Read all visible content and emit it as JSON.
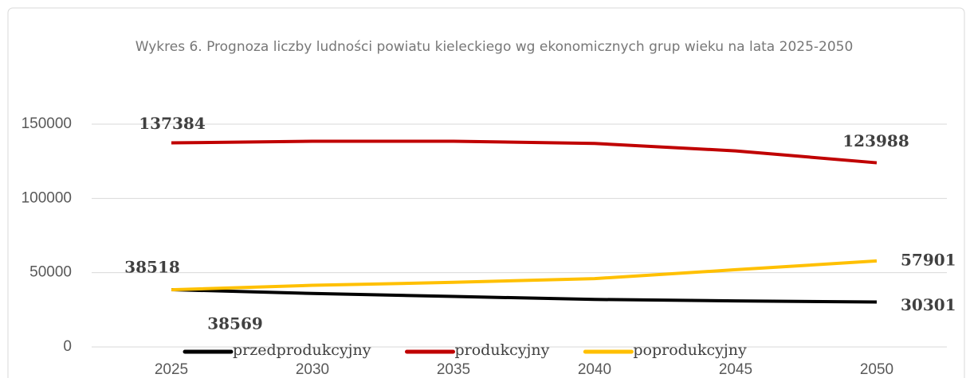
{
  "chart_data": {
    "type": "line",
    "title": "Wykres 6. Prognoza liczby ludności powiatu kieleckiego wg ekonomicznych grup wieku na lata 2025-2050",
    "categories": [
      "2025",
      "2030",
      "2035",
      "2040",
      "2045",
      "2050"
    ],
    "series": [
      {
        "name": "przedprodukcyjny",
        "color": "#000000",
        "values": [
          38569,
          36000,
          34000,
          32000,
          31000,
          30301
        ]
      },
      {
        "name": "produkcyjny",
        "color": "#c00000",
        "values": [
          137384,
          138500,
          138500,
          137000,
          132000,
          123988
        ]
      },
      {
        "name": "poprodukcyjny",
        "color": "#ffc000",
        "values": [
          38518,
          41500,
          43500,
          46000,
          52000,
          57901
        ]
      }
    ],
    "ylim": [
      0,
      150000
    ],
    "yticks": [
      0,
      50000,
      100000,
      150000
    ],
    "grid": true,
    "legend": "bottom"
  }
}
